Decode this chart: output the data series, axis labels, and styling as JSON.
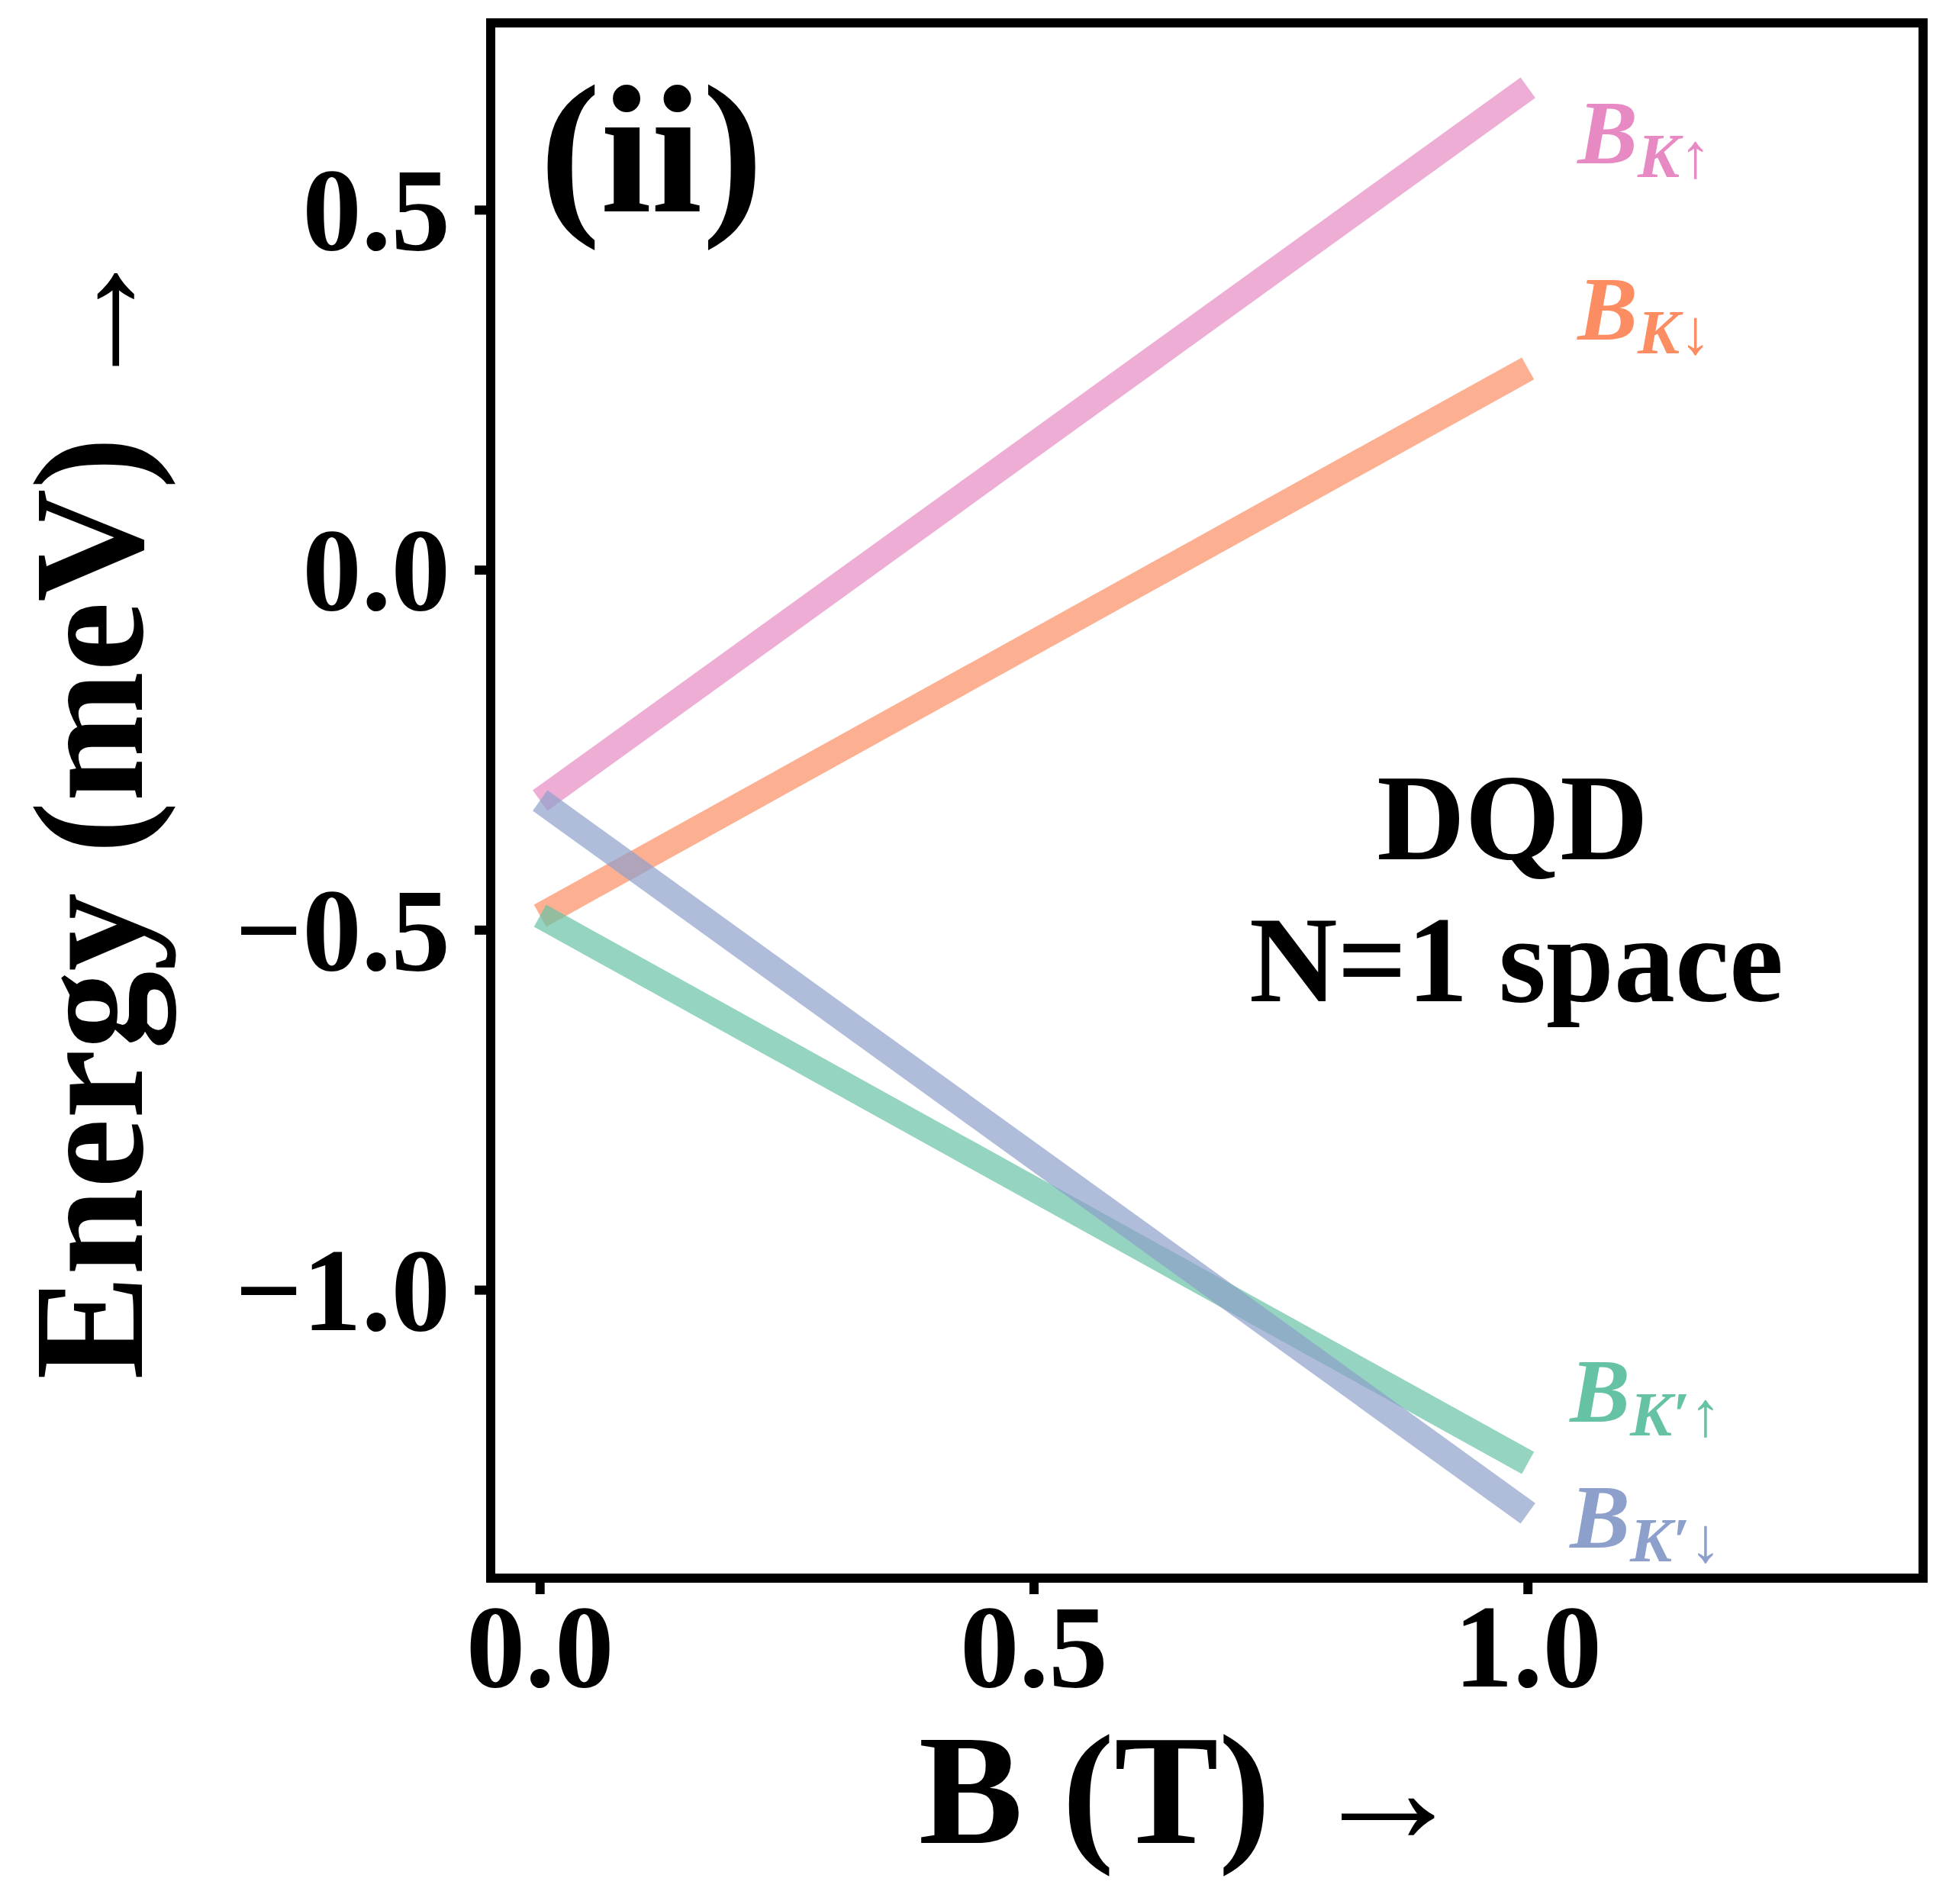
{
  "chart_data": {
    "type": "line",
    "xlabel": "B (T) →",
    "ylabel": "Energy (meV) →",
    "x": [
      0,
      1
    ],
    "series": [
      {
        "name": "B$_{K↑}$",
        "color": "#e78ac3",
        "values": [
          -0.32,
          0.67
        ]
      },
      {
        "name": "B$_{K↓}$",
        "color": "#fc8d62",
        "values": [
          -0.48,
          0.28
        ]
      },
      {
        "name": "B$_{K′↑}$",
        "color": "#66c2a5",
        "values": [
          -0.48,
          -1.24
        ]
      },
      {
        "name": "B$_{K′↓}$",
        "color": "#8da0cb",
        "values": [
          -0.32,
          -1.31
        ]
      }
    ],
    "xlim": [
      -0.05,
      1.4
    ],
    "ylim": [
      -1.4,
      0.76
    ],
    "xticks": [
      {
        "value": 0,
        "label": "0.0"
      },
      0.5,
      {
        "value": 1,
        "label": "1.0"
      }
    ],
    "yticks": [
      {
        "value": -1,
        "label": "−1.0"
      },
      {
        "value": -0.5,
        "label": "−0.5"
      },
      {
        "value": 0,
        "label": "0.0"
      },
      0.5
    ],
    "annotations": [
      "(ii)",
      "DQD",
      "N=1 space"
    ]
  }
}
